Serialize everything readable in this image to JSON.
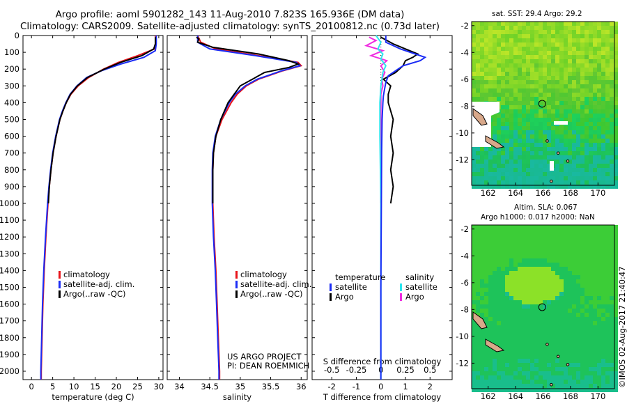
{
  "title": {
    "line1": "Argo profile: aoml 5901282_143 11-Aug-2010 7.823S 165.936E (DM data)",
    "line2": "Climatology: CARS2009. Satellite-adjusted climatology: synTS_20100812.nc (0.73d later)"
  },
  "colors": {
    "climatology": "#e8141a",
    "satellite": "#1b2cf5",
    "argo": "#000000",
    "sal_sat": "#2be6ef",
    "sal_argo": "#ef2ce0"
  },
  "depth_axis": {
    "ticks": [
      0,
      100,
      200,
      300,
      400,
      500,
      600,
      700,
      800,
      900,
      1000,
      1100,
      1200,
      1300,
      1400,
      1500,
      1600,
      1700,
      1800,
      1900,
      2000
    ]
  },
  "chart_data": [
    {
      "type": "line",
      "name": "temperature",
      "xlabel": "temperature (deg C)",
      "ylabel": "",
      "xlim": [
        -2,
        31
      ],
      "ylim": [
        2050,
        0
      ],
      "xticks": [
        0,
        5,
        10,
        15,
        20,
        25,
        30
      ],
      "legend": [
        "climatology",
        "satellite-adj. clim.",
        "Argo(..raw -QC)"
      ],
      "series": [
        {
          "name": "climatology",
          "depth": [
            0,
            50,
            80,
            120,
            160,
            200,
            250,
            300,
            350,
            400,
            450,
            500,
            600,
            700,
            800,
            900,
            1000,
            1200,
            1400,
            1600,
            1800,
            2000,
            2050
          ],
          "values": [
            29.2,
            29.2,
            29.0,
            25.0,
            20.5,
            17.0,
            13.5,
            11.0,
            9.3,
            8.2,
            7.4,
            6.7,
            5.8,
            5.1,
            4.6,
            4.2,
            3.9,
            3.4,
            3.0,
            2.7,
            2.5,
            2.3,
            2.3
          ]
        },
        {
          "name": "satellite-adj. clim.",
          "depth": [
            0,
            50,
            90,
            130,
            170,
            210,
            250,
            300,
            350,
            400,
            450,
            500,
            600,
            700,
            800,
            900,
            1000,
            1200,
            1400,
            1600,
            1800,
            2000,
            2050
          ],
          "values": [
            29.4,
            29.4,
            29.2,
            26.5,
            21.0,
            16.5,
            13.0,
            10.7,
            9.1,
            8.1,
            7.3,
            6.6,
            5.7,
            5.0,
            4.5,
            4.1,
            3.8,
            3.3,
            2.9,
            2.6,
            2.4,
            2.2,
            2.2
          ]
        },
        {
          "name": "Argo(..raw -QC)",
          "depth": [
            10,
            50,
            80,
            120,
            160,
            200,
            250,
            300,
            350,
            400,
            450,
            500,
            600,
            700,
            800,
            900,
            1000
          ],
          "values": [
            29.2,
            29.2,
            28.8,
            26.0,
            21.0,
            17.2,
            13.2,
            10.8,
            9.2,
            8.2,
            7.4,
            6.7,
            5.8,
            5.1,
            4.6,
            4.2,
            4.0
          ]
        }
      ]
    },
    {
      "type": "line",
      "name": "salinity",
      "xlabel": "salinity",
      "xlim": [
        33.8,
        36.1
      ],
      "ylim": [
        2050,
        0
      ],
      "xticks": [
        34,
        34.5,
        35,
        35.5,
        36
      ],
      "xticklabels": [
        "34",
        "34.5",
        "35",
        "35.5",
        "36"
      ],
      "legend": [
        "climatology",
        "satellite-adj. clim.",
        "Argo(..raw -QC)"
      ],
      "annotation": [
        "US ARGO PROJECT",
        "PI: DEAN ROEMMICH"
      ],
      "series": [
        {
          "name": "climatology",
          "depth": [
            0,
            40,
            80,
            120,
            160,
            180,
            210,
            260,
            300,
            350,
            400,
            500,
            600,
            700,
            800,
            1000,
            1200,
            1400,
            1600,
            1800,
            2000,
            2050
          ],
          "values": [
            34.3,
            34.35,
            34.6,
            35.3,
            35.95,
            36.0,
            35.7,
            35.3,
            35.1,
            34.95,
            34.85,
            34.7,
            34.6,
            34.56,
            34.55,
            34.55,
            34.57,
            34.6,
            34.62,
            34.64,
            34.66,
            34.66
          ]
        },
        {
          "name": "satellite-adj. clim.",
          "depth": [
            0,
            40,
            80,
            120,
            160,
            180,
            210,
            260,
            300,
            350,
            400,
            500,
            600,
            700,
            800,
            1000,
            1200,
            1400,
            1600,
            1800,
            2000,
            2050
          ],
          "values": [
            34.3,
            34.3,
            34.5,
            35.25,
            35.92,
            35.98,
            35.68,
            35.28,
            35.08,
            34.92,
            34.82,
            34.68,
            34.59,
            34.55,
            34.54,
            34.54,
            34.56,
            34.59,
            34.61,
            34.63,
            34.65,
            34.65
          ]
        },
        {
          "name": "Argo(..raw -QC)",
          "depth": [
            10,
            20,
            40,
            70,
            110,
            150,
            170,
            190,
            220,
            260,
            300,
            350,
            400,
            500,
            600,
            700,
            800,
            1000
          ],
          "values": [
            34.28,
            34.32,
            34.3,
            34.55,
            35.3,
            35.8,
            35.95,
            35.8,
            35.4,
            35.2,
            35.0,
            34.9,
            34.8,
            34.68,
            34.6,
            34.56,
            34.55,
            34.55
          ]
        }
      ]
    },
    {
      "type": "line",
      "name": "differences",
      "xlabel": "T difference from climatology",
      "xlabel_top": "S difference from climatology",
      "xlim": [
        -2.8,
        2.9
      ],
      "ylim": [
        2050,
        0
      ],
      "xticks": [
        -2,
        -1,
        0,
        1,
        2
      ],
      "xticks_s": [
        -0.5,
        -0.25,
        0,
        0.25,
        0.5
      ],
      "xticklabels_s": [
        "-0.5",
        "-0.25",
        "0",
        "0.25",
        "0.5"
      ],
      "legend": {
        "temperature": [
          "satellite",
          "Argo"
        ],
        "salinity": [
          "satellite",
          "Argo"
        ],
        "temperature_title": "temperature",
        "salinity_title": "salinity"
      },
      "series": [
        {
          "name": "T satellite",
          "depth": [
            0,
            40,
            80,
            110,
            130,
            150,
            180,
            210,
            240,
            280,
            320,
            360,
            400,
            500,
            700,
            1000,
            1500,
            2050
          ],
          "values": [
            0.2,
            0.2,
            0.8,
            1.4,
            1.8,
            1.6,
            0.9,
            0.6,
            0.3,
            0.2,
            0.15,
            0.1,
            0.08,
            0.05,
            0.03,
            0.02,
            0.0,
            0.0
          ]
        },
        {
          "name": "T Argo",
          "depth": [
            10,
            50,
            80,
            110,
            130,
            150,
            180,
            220,
            260,
            300,
            350,
            400,
            500,
            600,
            700,
            800,
            900,
            1000
          ],
          "values": [
            0.0,
            0.5,
            1.0,
            1.5,
            1.3,
            1.0,
            0.9,
            0.6,
            0.1,
            0.4,
            0.3,
            0.3,
            0.5,
            0.4,
            0.5,
            0.4,
            0.5,
            0.4
          ]
        },
        {
          "name": "S satellite",
          "depth": [
            0,
            40,
            80,
            110,
            140,
            180,
            220,
            300,
            400,
            600,
            1000,
            1500,
            2050
          ],
          "values": [
            -0.05,
            0.0,
            -0.03,
            0.02,
            0.0,
            0.05,
            0.02,
            0.0,
            -0.01,
            -0.01,
            0.0,
            0.0,
            0.0
          ]
        },
        {
          "name": "S Argo",
          "depth": [
            10,
            30,
            60,
            90,
            120,
            150,
            180,
            220,
            260,
            300,
            350,
            400,
            600,
            800,
            1000
          ],
          "values": [
            -0.12,
            -0.05,
            -0.15,
            0.02,
            -0.1,
            0.06,
            0.0,
            0.04,
            0.01,
            0.02,
            0.0,
            0.0,
            0.0,
            0.0,
            0.0
          ]
        }
      ]
    }
  ],
  "map_top": {
    "title": "sat. SST: 29.4  Argo: 29.2",
    "yticks": [
      "-2",
      "-4",
      "-6",
      "-8",
      "-10",
      "-12"
    ],
    "xticks": [
      "162",
      "164",
      "166",
      "168",
      "170"
    ],
    "argo_marker": {
      "lon": 165.936,
      "lat": -7.823
    }
  },
  "map_bottom": {
    "title1": "Altim. SLA: 0.067",
    "title2": "Argo h1000: 0.017 h2000: NaN",
    "yticks": [
      "-2",
      "-4",
      "-6",
      "-8",
      "-10",
      "-12"
    ],
    "xticks": [
      "162",
      "164",
      "166",
      "168",
      "170"
    ],
    "argo_marker": {
      "lon": 165.936,
      "lat": -7.823
    }
  },
  "credit": "©IMOS 02-Aug-2017 21:40:47"
}
